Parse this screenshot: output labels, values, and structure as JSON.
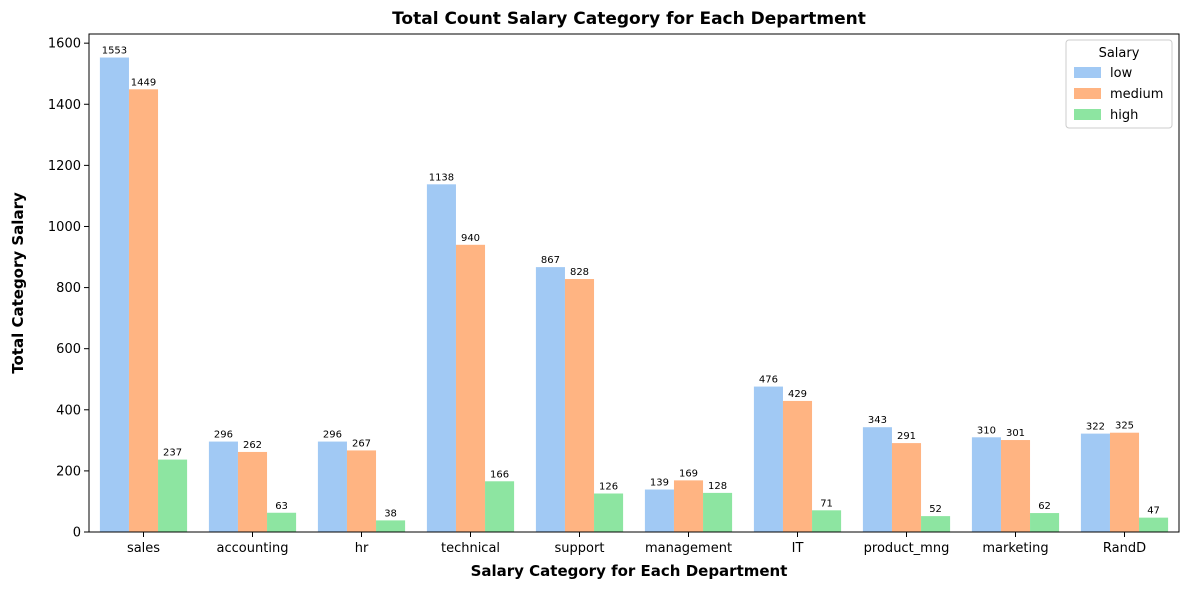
{
  "chart_data": {
    "type": "bar",
    "title": "Total Count Salary Category for Each Department",
    "xlabel": "Salary Category for Each Department",
    "ylabel": "Total Category Salary",
    "categories": [
      "sales",
      "accounting",
      "hr",
      "technical",
      "support",
      "management",
      "IT",
      "product_mng",
      "marketing",
      "RandD"
    ],
    "ylim": [
      0,
      1630
    ],
    "yticks": [
      0,
      200,
      400,
      600,
      800,
      1000,
      1200,
      1400,
      1600
    ],
    "grid": false,
    "legend": {
      "title": "Salary",
      "placement": "top-right"
    },
    "series": [
      {
        "name": "low",
        "color": "#a1c9f4",
        "values": [
          1553,
          296,
          296,
          1138,
          867,
          139,
          476,
          343,
          310,
          322
        ]
      },
      {
        "name": "medium",
        "color": "#ffb482",
        "values": [
          1449,
          262,
          267,
          940,
          828,
          169,
          429,
          291,
          301,
          325
        ]
      },
      {
        "name": "high",
        "color": "#8de5a1",
        "values": [
          237,
          63,
          38,
          166,
          126,
          128,
          71,
          52,
          62,
          47
        ]
      }
    ]
  }
}
